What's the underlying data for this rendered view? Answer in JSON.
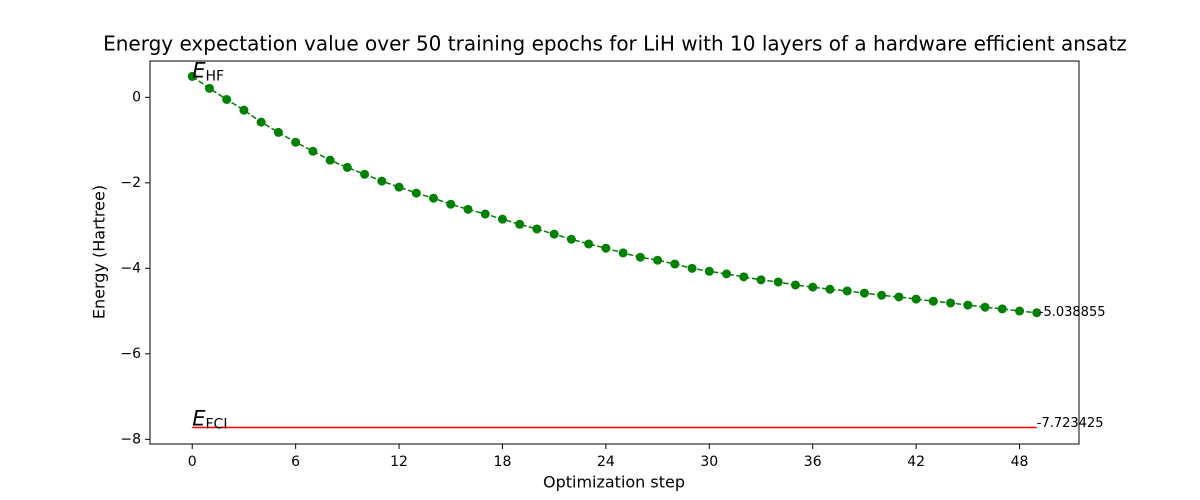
{
  "chart_data": {
    "type": "line",
    "title": "Energy expectation value over 50 training epochs for LiH with 10 layers of a hardware efficient ansatz",
    "x_label": "Optimization step",
    "y_label": "Energy (Hartree)",
    "x": [
      0,
      1,
      2,
      3,
      4,
      5,
      6,
      7,
      8,
      9,
      10,
      11,
      12,
      13,
      14,
      15,
      16,
      17,
      18,
      19,
      20,
      21,
      22,
      23,
      24,
      25,
      26,
      27,
      28,
      29,
      30,
      31,
      32,
      33,
      34,
      35,
      36,
      37,
      38,
      39,
      40,
      41,
      42,
      43,
      44,
      45,
      46,
      47,
      48,
      49
    ],
    "values": [
      0.49,
      0.21,
      -0.05,
      -0.3,
      -0.58,
      -0.82,
      -1.05,
      -1.26,
      -1.47,
      -1.64,
      -1.8,
      -1.96,
      -2.1,
      -2.24,
      -2.36,
      -2.5,
      -2.62,
      -2.73,
      -2.85,
      -2.97,
      -3.08,
      -3.2,
      -3.32,
      -3.43,
      -3.53,
      -3.64,
      -3.74,
      -3.81,
      -3.9,
      -4.0,
      -4.07,
      -4.13,
      -4.2,
      -4.27,
      -4.32,
      -4.39,
      -4.44,
      -4.49,
      -4.53,
      -4.58,
      -4.63,
      -4.67,
      -4.72,
      -4.77,
      -4.81,
      -4.86,
      -4.91,
      -4.95,
      -5.0,
      -5.038855
    ],
    "color": "#008000",
    "line_style": "dashed",
    "marker": "circle",
    "reference": {
      "value": -7.723425,
      "color": "#ff0000",
      "xrange": [
        0,
        49
      ]
    },
    "hf_label": {
      "main": "E",
      "sub": "HF"
    },
    "fci_label": {
      "main": "E",
      "sub": "FCI"
    },
    "xlim": [
      -2.45,
      51.45
    ],
    "ylim": [
      -8.11,
      0.85
    ],
    "xticks": [
      0,
      6,
      12,
      18,
      24,
      30,
      36,
      42,
      48
    ],
    "yticks": [
      0,
      {
        "value": -2,
        "label": "−2"
      },
      {
        "value": -4,
        "label": "−4"
      },
      {
        "value": -6,
        "label": "−6"
      },
      {
        "value": -8,
        "label": "−8"
      }
    ],
    "grid": false
  }
}
